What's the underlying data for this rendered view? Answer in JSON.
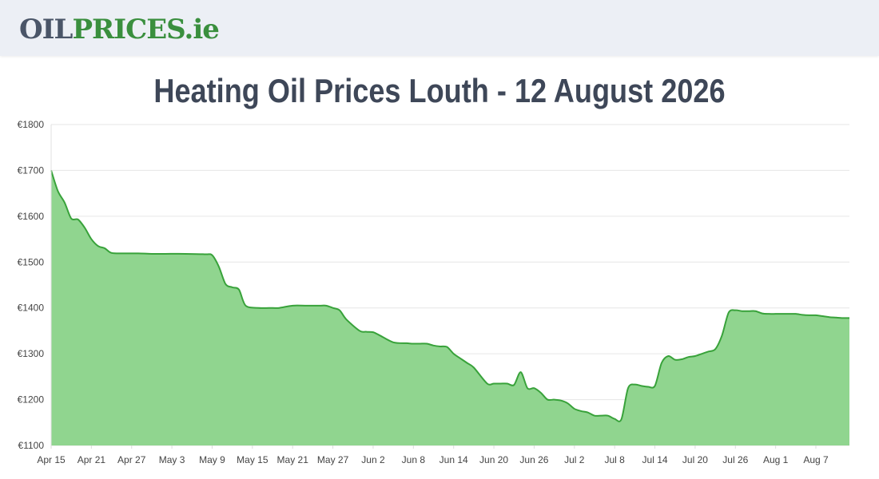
{
  "header": {
    "logo_part1": "OIL",
    "logo_part2": "PRICES",
    "logo_part3": ".ie"
  },
  "page_title": "Heating Oil Prices Louth - 12 August 2026",
  "colors": {
    "line": "#38a23a",
    "fill": "#90d58f",
    "grid": "#e6e6e6",
    "header_bg": "#eceff5",
    "title": "#3e4758"
  },
  "chart_data": {
    "type": "area",
    "title": "",
    "xlabel": "",
    "ylabel": "",
    "ylim": [
      1100,
      1800
    ],
    "yticks": [
      1100,
      1200,
      1300,
      1400,
      1500,
      1600,
      1700,
      1800
    ],
    "ytick_labels": [
      "€1100",
      "€1200",
      "€1300",
      "€1400",
      "€1500",
      "€1600",
      "€1700",
      "€1800"
    ],
    "xlim": [
      "2026-04-15",
      "2026-08-12"
    ],
    "xticks": [
      "2026-04-15",
      "2026-04-21",
      "2026-04-27",
      "2026-05-03",
      "2026-05-09",
      "2026-05-15",
      "2026-05-21",
      "2026-05-27",
      "2026-06-02",
      "2026-06-08",
      "2026-06-14",
      "2026-06-20",
      "2026-06-26",
      "2026-07-02",
      "2026-07-08",
      "2026-07-14",
      "2026-07-20",
      "2026-07-26",
      "2026-08-01",
      "2026-08-07"
    ],
    "xtick_labels": [
      "Apr 15",
      "Apr 21",
      "Apr 27",
      "May 3",
      "May 9",
      "May 15",
      "May 21",
      "May 27",
      "Jun 2",
      "Jun 8",
      "Jun 14",
      "Jun 20",
      "Jun 26",
      "Jul 2",
      "Jul 8",
      "Jul 14",
      "Jul 20",
      "Jul 26",
      "Aug 1",
      "Aug 7"
    ],
    "grid": true,
    "series": [
      {
        "x": [
          "2026-04-15",
          "2026-04-16",
          "2026-04-17",
          "2026-04-18",
          "2026-04-19",
          "2026-04-20",
          "2026-04-21",
          "2026-04-22",
          "2026-04-23",
          "2026-04-24",
          "2026-04-26",
          "2026-04-28",
          "2026-04-30",
          "2026-05-02",
          "2026-05-05",
          "2026-05-08",
          "2026-05-09",
          "2026-05-10",
          "2026-05-11",
          "2026-05-12",
          "2026-05-13",
          "2026-05-14",
          "2026-05-16",
          "2026-05-18",
          "2026-05-19",
          "2026-05-21",
          "2026-05-23",
          "2026-05-25",
          "2026-05-26",
          "2026-05-27",
          "2026-05-28",
          "2026-05-29",
          "2026-05-31",
          "2026-06-01",
          "2026-06-02",
          "2026-06-03",
          "2026-06-05",
          "2026-06-07",
          "2026-06-08",
          "2026-06-09",
          "2026-06-10",
          "2026-06-11",
          "2026-06-12",
          "2026-06-13",
          "2026-06-14",
          "2026-06-15",
          "2026-06-16",
          "2026-06-17",
          "2026-06-19",
          "2026-06-20",
          "2026-06-21",
          "2026-06-22",
          "2026-06-23",
          "2026-06-24",
          "2026-06-25",
          "2026-06-26",
          "2026-06-27",
          "2026-06-28",
          "2026-06-29",
          "2026-06-30",
          "2026-07-01",
          "2026-07-02",
          "2026-07-03",
          "2026-07-04",
          "2026-07-05",
          "2026-07-06",
          "2026-07-07",
          "2026-07-08",
          "2026-07-09",
          "2026-07-10",
          "2026-07-11",
          "2026-07-12",
          "2026-07-13",
          "2026-07-14",
          "2026-07-15",
          "2026-07-16",
          "2026-07-17",
          "2026-07-18",
          "2026-07-19",
          "2026-07-20",
          "2026-07-21",
          "2026-07-22",
          "2026-07-23",
          "2026-07-24",
          "2026-07-25",
          "2026-07-26",
          "2026-07-27",
          "2026-07-28",
          "2026-07-29",
          "2026-07-30",
          "2026-07-31",
          "2026-08-01",
          "2026-08-02",
          "2026-08-03",
          "2026-08-04",
          "2026-08-05",
          "2026-08-06",
          "2026-08-07",
          "2026-08-08",
          "2026-08-09",
          "2026-08-10",
          "2026-08-11",
          "2026-08-12"
        ],
        "values": [
          1700,
          1655,
          1630,
          1595,
          1593,
          1575,
          1550,
          1535,
          1530,
          1520,
          1519,
          1519,
          1518,
          1518,
          1518,
          1517,
          1515,
          1490,
          1452,
          1445,
          1440,
          1405,
          1400,
          1400,
          1400,
          1405,
          1405,
          1405,
          1405,
          1400,
          1395,
          1375,
          1350,
          1348,
          1347,
          1340,
          1325,
          1323,
          1322,
          1322,
          1322,
          1318,
          1316,
          1315,
          1300,
          1290,
          1280,
          1270,
          1235,
          1235,
          1235,
          1235,
          1232,
          1260,
          1225,
          1225,
          1215,
          1200,
          1200,
          1198,
          1192,
          1180,
          1175,
          1172,
          1165,
          1165,
          1165,
          1158,
          1157,
          1225,
          1233,
          1230,
          1228,
          1230,
          1280,
          1295,
          1287,
          1288,
          1293,
          1295,
          1300,
          1305,
          1310,
          1340,
          1390,
          1395,
          1393,
          1393,
          1393,
          1388,
          1387,
          1387,
          1387,
          1387,
          1387,
          1385,
          1384,
          1384,
          1382,
          1380,
          1379,
          1378,
          1378
        ]
      }
    ]
  }
}
